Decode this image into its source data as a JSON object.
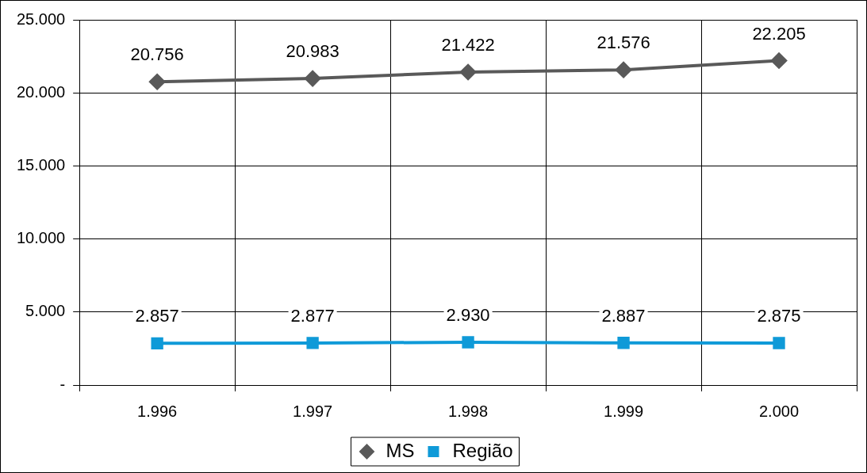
{
  "chart_data": {
    "type": "line",
    "categories": [
      "1.996",
      "1.997",
      "1.998",
      "1.999",
      "2.000"
    ],
    "series": [
      {
        "name": "MS",
        "color": "#595959",
        "marker": "diamond",
        "values": [
          20756,
          20983,
          21422,
          21576,
          22205
        ],
        "value_labels": [
          "20.756",
          "20.983",
          "21.422",
          "21.576",
          "22.205"
        ]
      },
      {
        "name": "Região",
        "color": "#0f9ad8",
        "marker": "square",
        "values": [
          2857,
          2877,
          2930,
          2887,
          2875
        ],
        "value_labels": [
          "2.857",
          "2.877",
          "2.930",
          "2.887",
          "2.875"
        ]
      }
    ],
    "ylim": [
      0,
      25000
    ],
    "yticks": [
      {
        "value": 0,
        "label": "-"
      },
      {
        "value": 5000,
        "label": "5.000"
      },
      {
        "value": 10000,
        "label": "10.000"
      },
      {
        "value": 15000,
        "label": "15.000"
      },
      {
        "value": 20000,
        "label": "20.000"
      },
      {
        "value": 25000,
        "label": "25.000"
      }
    ],
    "grid": true,
    "legend": "bottom",
    "line_style": "solid"
  }
}
